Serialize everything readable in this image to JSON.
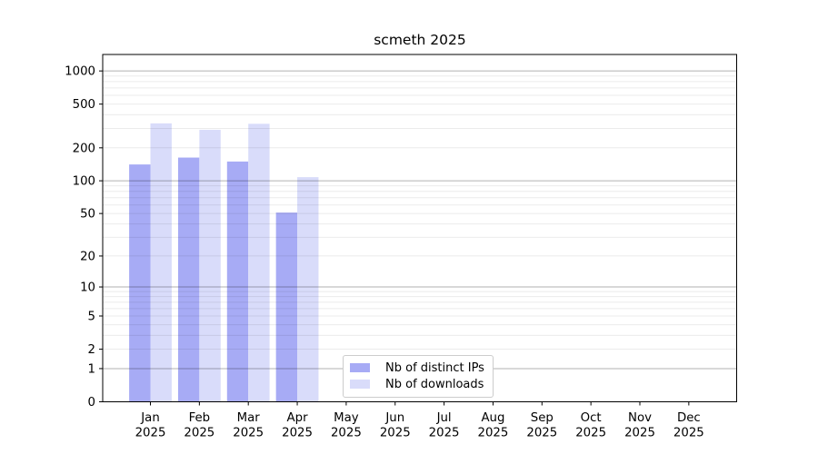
{
  "title": "scmeth 2025",
  "colors": {
    "distinct_ips": "#a7abf5",
    "downloads": "#d9dcfa",
    "axis": "#000000",
    "text": "#000000",
    "major_grid": "rgba(0,0,0,0.30)",
    "minor_grid": "rgba(0,0,0,0.08)",
    "legend_border": "#cccccc",
    "background": "#ffffff"
  },
  "legend": {
    "items": [
      {
        "label": "Nb of distinct IPs",
        "color_key": "distinct_ips"
      },
      {
        "label": "Nb of downloads",
        "color_key": "downloads"
      }
    ]
  },
  "chart_data": {
    "type": "bar",
    "title": "scmeth 2025",
    "categories": [
      "Jan",
      "Feb",
      "Mar",
      "Apr",
      "May",
      "Jun",
      "Jul",
      "Aug",
      "Sep",
      "Oct",
      "Nov",
      "Dec"
    ],
    "x_tick_second_line": "2025",
    "series": [
      {
        "name": "Nb of distinct IPs",
        "color_key": "distinct_ips",
        "values": [
          141,
          163,
          150,
          51,
          null,
          null,
          null,
          null,
          null,
          null,
          null,
          null
        ]
      },
      {
        "name": "Nb of downloads",
        "color_key": "downloads",
        "values": [
          334,
          292,
          331,
          108,
          null,
          null,
          null,
          null,
          null,
          null,
          null,
          null
        ]
      }
    ],
    "y_scale": "log10(1+y)",
    "y_ticks": [
      0,
      1,
      2,
      5,
      10,
      20,
      50,
      100,
      200,
      500,
      1000
    ],
    "major_y_gridlines": [
      1,
      10,
      100,
      1000
    ],
    "minor_y_gridlines": [
      2,
      3,
      4,
      5,
      6,
      7,
      8,
      9,
      20,
      30,
      40,
      50,
      60,
      70,
      80,
      90,
      200,
      300,
      400,
      500,
      600,
      700,
      800,
      900
    ],
    "ylim": [
      0,
      1411
    ],
    "xlabel": "",
    "ylabel": "",
    "grid": "horizontal",
    "legend_position": "inside-bottom-center-left"
  }
}
